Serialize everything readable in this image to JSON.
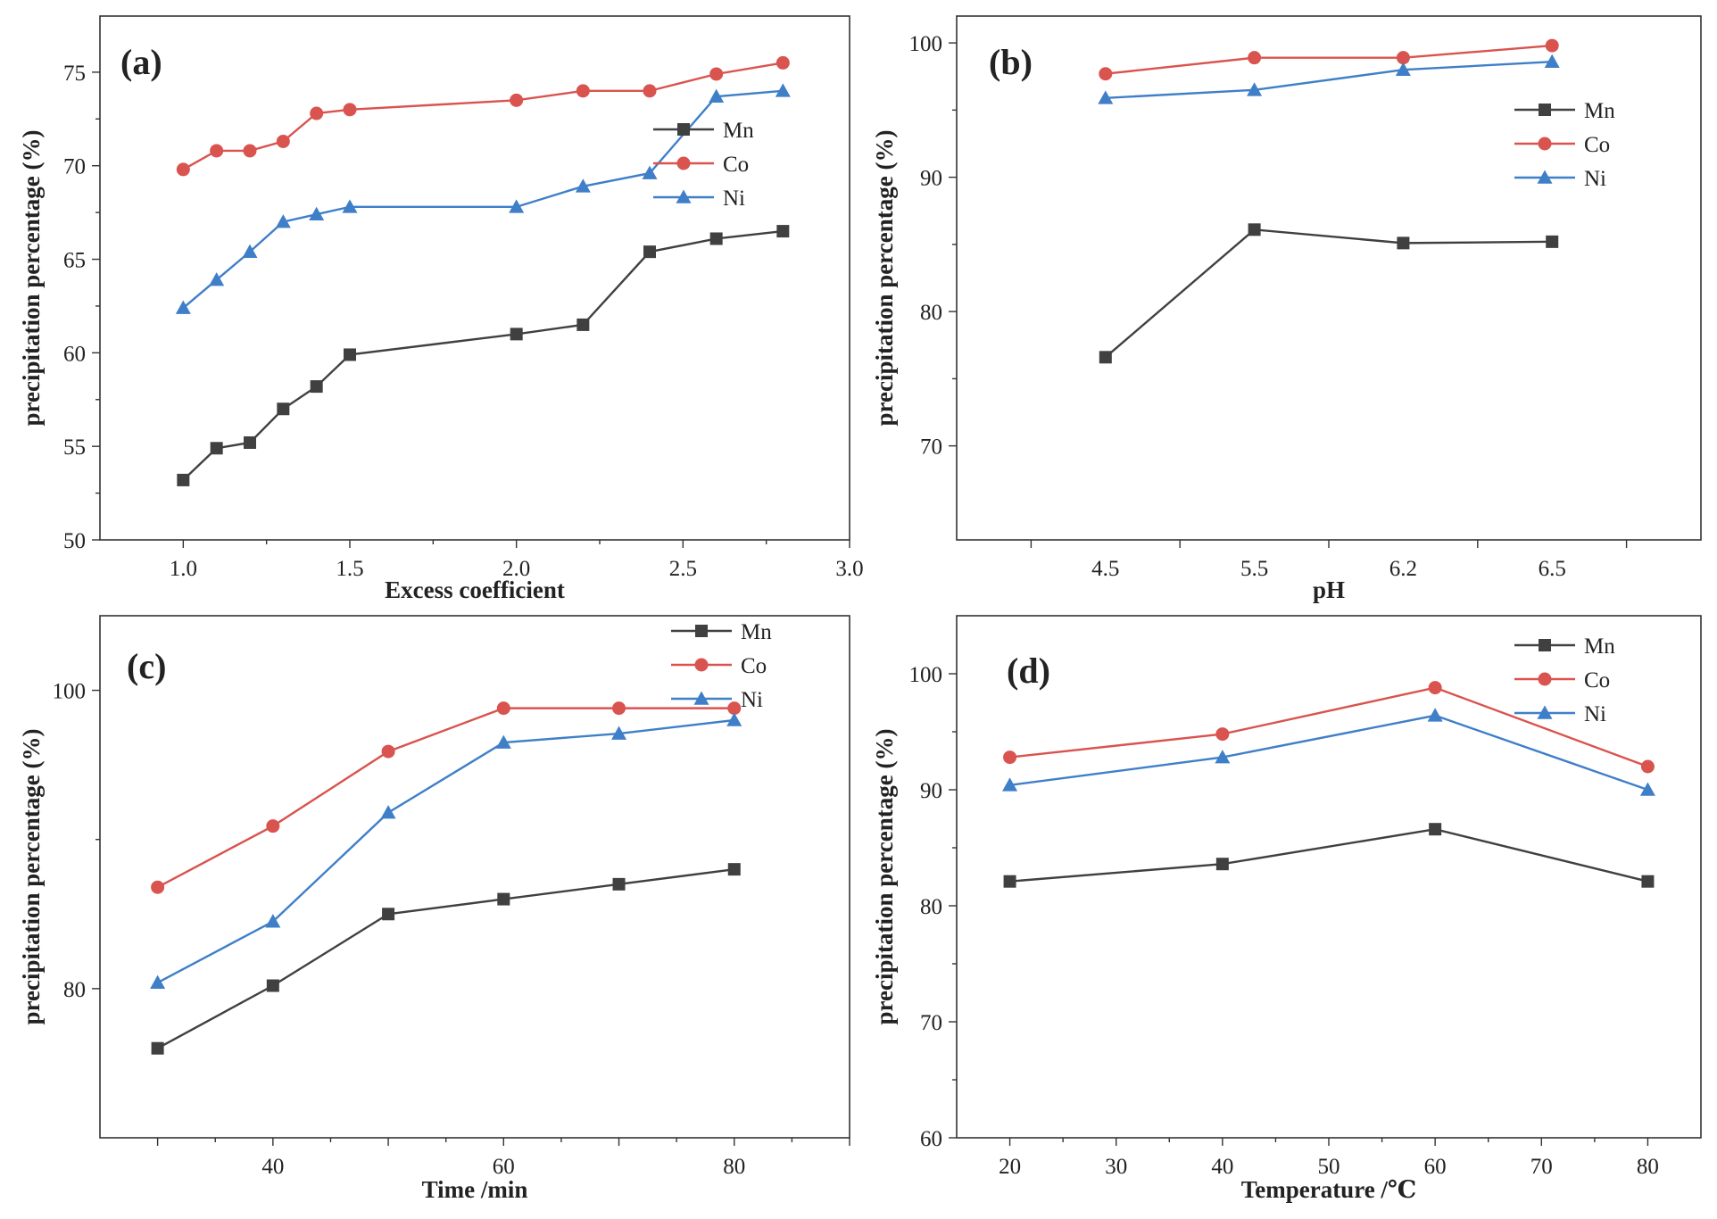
{
  "colors": {
    "Mn": "#404040",
    "Co": "#d9534f",
    "Ni": "#3f7fc8"
  },
  "chart_data": [
    {
      "type": "line",
      "panel_label": "(a)",
      "xlabel": "Excess coefficient",
      "ylabel": "precipitation percentage (%)",
      "xlim": [
        0.75,
        3.0
      ],
      "ylim": [
        50,
        78
      ],
      "xticks": [
        1.0,
        1.5,
        2.0,
        2.5,
        3.0
      ],
      "xtick_labels": [
        "1.0",
        "1.5",
        "2.0",
        "2.5",
        "3.0"
      ],
      "yticks": [
        50,
        55,
        60,
        65,
        70,
        75
      ],
      "ytick_labels": [
        "50",
        "55",
        "60",
        "65",
        "70",
        "75"
      ],
      "legend_position": "center-right",
      "x": [
        1.0,
        1.1,
        1.2,
        1.3,
        1.4,
        1.5,
        2.0,
        2.2,
        2.4,
        2.6,
        2.8
      ],
      "series": [
        {
          "name": "Mn",
          "marker": "square",
          "values": [
            53.2,
            54.9,
            55.2,
            57.0,
            58.2,
            59.9,
            61.0,
            61.5,
            65.4,
            66.1,
            66.5
          ]
        },
        {
          "name": "Co",
          "marker": "circle",
          "values": [
            69.8,
            70.8,
            70.8,
            71.3,
            72.8,
            73.0,
            73.5,
            74.0,
            74.0,
            74.9,
            75.5
          ]
        },
        {
          "name": "Ni",
          "marker": "triangle",
          "values": [
            62.4,
            63.9,
            65.4,
            67.0,
            67.4,
            67.8,
            67.8,
            68.9,
            69.6,
            73.7,
            74.0
          ]
        }
      ]
    },
    {
      "type": "line",
      "panel_label": "(b)",
      "xlabel": "pH",
      "ylabel": "precipitation percentage (%)",
      "categorical_x": true,
      "xlim": [
        0,
        5
      ],
      "ylim": [
        63,
        102
      ],
      "xticks": [
        0.5,
        1.5,
        2.5,
        3.5,
        4.5
      ],
      "xtick_labels": [
        "4.5",
        "5.5",
        "6.2",
        "6.5"
      ],
      "x_positions": [
        1,
        2,
        3,
        4
      ],
      "yticks": [
        70,
        80,
        90,
        100
      ],
      "ytick_labels": [
        "70",
        "80",
        "90",
        "100"
      ],
      "legend_position": "top-right",
      "x": [
        "4.5",
        "5.5",
        "6.2",
        "6.5"
      ],
      "series": [
        {
          "name": "Mn",
          "marker": "square",
          "values": [
            76.6,
            86.1,
            85.1,
            85.2
          ]
        },
        {
          "name": "Co",
          "marker": "circle",
          "values": [
            97.7,
            98.9,
            98.9,
            99.8
          ]
        },
        {
          "name": "Ni",
          "marker": "triangle",
          "values": [
            95.9,
            96.5,
            98.0,
            98.6
          ]
        }
      ]
    },
    {
      "type": "line",
      "panel_label": "(c)",
      "xlabel": "Time /min",
      "ylabel": "precipitation percentage (%)",
      "xlim": [
        25,
        90
      ],
      "ylim": [
        70,
        105
      ],
      "xticks": [
        30,
        40,
        50,
        60,
        70,
        80,
        90
      ],
      "xtick_labels": [
        "",
        "40",
        "",
        "60",
        "",
        "80",
        ""
      ],
      "yticks": [
        80,
        100
      ],
      "ytick_labels": [
        "80",
        "100"
      ],
      "legend_position": "top-right",
      "x": [
        30,
        40,
        50,
        60,
        70,
        80
      ],
      "series": [
        {
          "name": "Mn",
          "marker": "square",
          "values": [
            76.0,
            80.2,
            85.0,
            86.0,
            87.0,
            88.0
          ]
        },
        {
          "name": "Co",
          "marker": "circle",
          "values": [
            86.8,
            90.9,
            95.9,
            98.8,
            98.8,
            98.8
          ]
        },
        {
          "name": "Ni",
          "marker": "triangle",
          "values": [
            80.4,
            84.5,
            91.8,
            96.5,
            97.1,
            98.0
          ]
        }
      ]
    },
    {
      "type": "line",
      "panel_label": "(d)",
      "xlabel": "Temperature /℃",
      "ylabel": "precipitation percentage (%)",
      "xlim": [
        15,
        85
      ],
      "ylim": [
        60,
        105
      ],
      "xticks": [
        20,
        30,
        40,
        50,
        60,
        70,
        80
      ],
      "xtick_labels": [
        "20",
        "30",
        "40",
        "50",
        "60",
        "70",
        "80"
      ],
      "yticks": [
        60,
        70,
        80,
        90,
        100
      ],
      "ytick_labels": [
        "60",
        "70",
        "80",
        "90",
        "100"
      ],
      "legend_position": "top-right",
      "x": [
        20,
        40,
        60,
        80
      ],
      "series": [
        {
          "name": "Mn",
          "marker": "square",
          "values": [
            82.1,
            83.6,
            86.6,
            82.1
          ]
        },
        {
          "name": "Co",
          "marker": "circle",
          "values": [
            92.8,
            94.8,
            98.8,
            92.0
          ]
        },
        {
          "name": "Ni",
          "marker": "triangle",
          "values": [
            90.4,
            92.8,
            96.4,
            90.0
          ]
        }
      ]
    }
  ]
}
